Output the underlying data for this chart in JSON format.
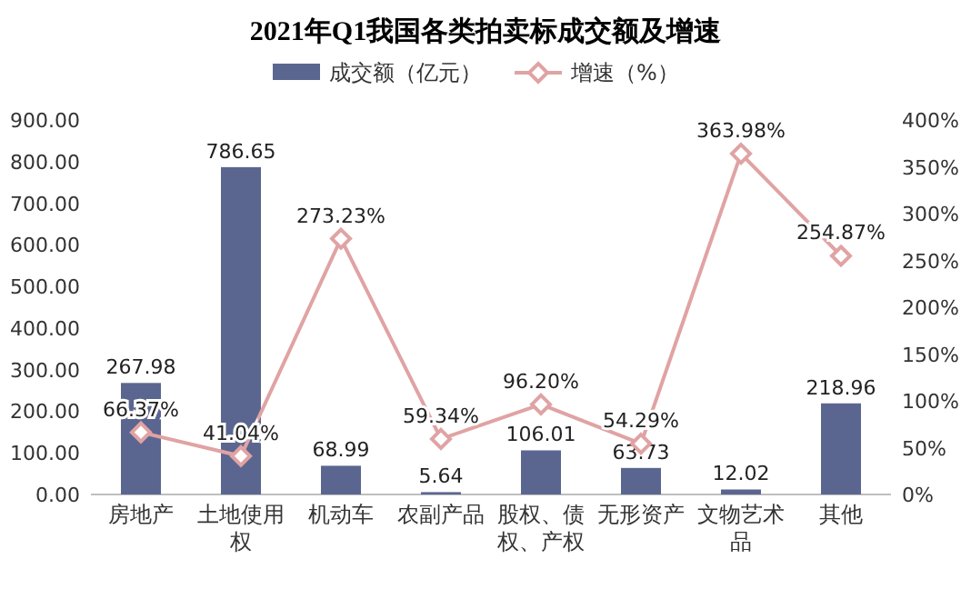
{
  "chart_data": {
    "type": "bar",
    "title": "2021年Q1我国各类拍卖标成交额及增速",
    "categories": [
      "房地产",
      "土地使用权",
      "机动车",
      "农副产品",
      "股权、债权、产权",
      "无形资产",
      "文物艺术品",
      "其他"
    ],
    "series": [
      {
        "name": "成交额（亿元）",
        "color": "#5b6690",
        "values": [
          267.98,
          786.65,
          68.99,
          5.64,
          106.01,
          63.73,
          12.02,
          218.96
        ],
        "value_labels": [
          "267.98",
          "786.65",
          "68.99",
          "5.64",
          "106.01",
          "63.73",
          "12.02",
          "218.96"
        ]
      },
      {
        "name": "增速（%）",
        "type": "line",
        "axis": "y2",
        "color": "#e0a3a3",
        "marker": "diamond",
        "values": [
          66.37,
          41.04,
          273.23,
          59.34,
          96.2,
          54.29,
          363.98,
          254.87
        ],
        "value_labels": [
          "66.37%",
          "41.04%",
          "273.23%",
          "59.34%",
          "96.20%",
          "54.29%",
          "363.98%",
          "254.87%"
        ]
      }
    ],
    "ylim": [
      0,
      900
    ],
    "yticks": [
      {
        "value": 0,
        "label": "0.00"
      },
      {
        "value": 100,
        "label": "100.00"
      },
      {
        "value": 200,
        "label": "200.00"
      },
      {
        "value": 300,
        "label": "300.00"
      },
      {
        "value": 400,
        "label": "400.00"
      },
      {
        "value": 500,
        "label": "500.00"
      },
      {
        "value": 600,
        "label": "600.00"
      },
      {
        "value": 700,
        "label": "700.00"
      },
      {
        "value": 800,
        "label": "800.00"
      },
      {
        "value": 900,
        "label": "900.00"
      }
    ],
    "y2lim": [
      0,
      400
    ],
    "y2ticks": [
      {
        "value": 0,
        "label": "0%"
      },
      {
        "value": 50,
        "label": "50%"
      },
      {
        "value": 100,
        "label": "100%"
      },
      {
        "value": 150,
        "label": "150%"
      },
      {
        "value": 200,
        "label": "200%"
      },
      {
        "value": 250,
        "label": "250%"
      },
      {
        "value": 300,
        "label": "300%"
      },
      {
        "value": 350,
        "label": "350%"
      },
      {
        "value": 400,
        "label": "400%"
      }
    ],
    "legend": "top",
    "grid": false
  }
}
